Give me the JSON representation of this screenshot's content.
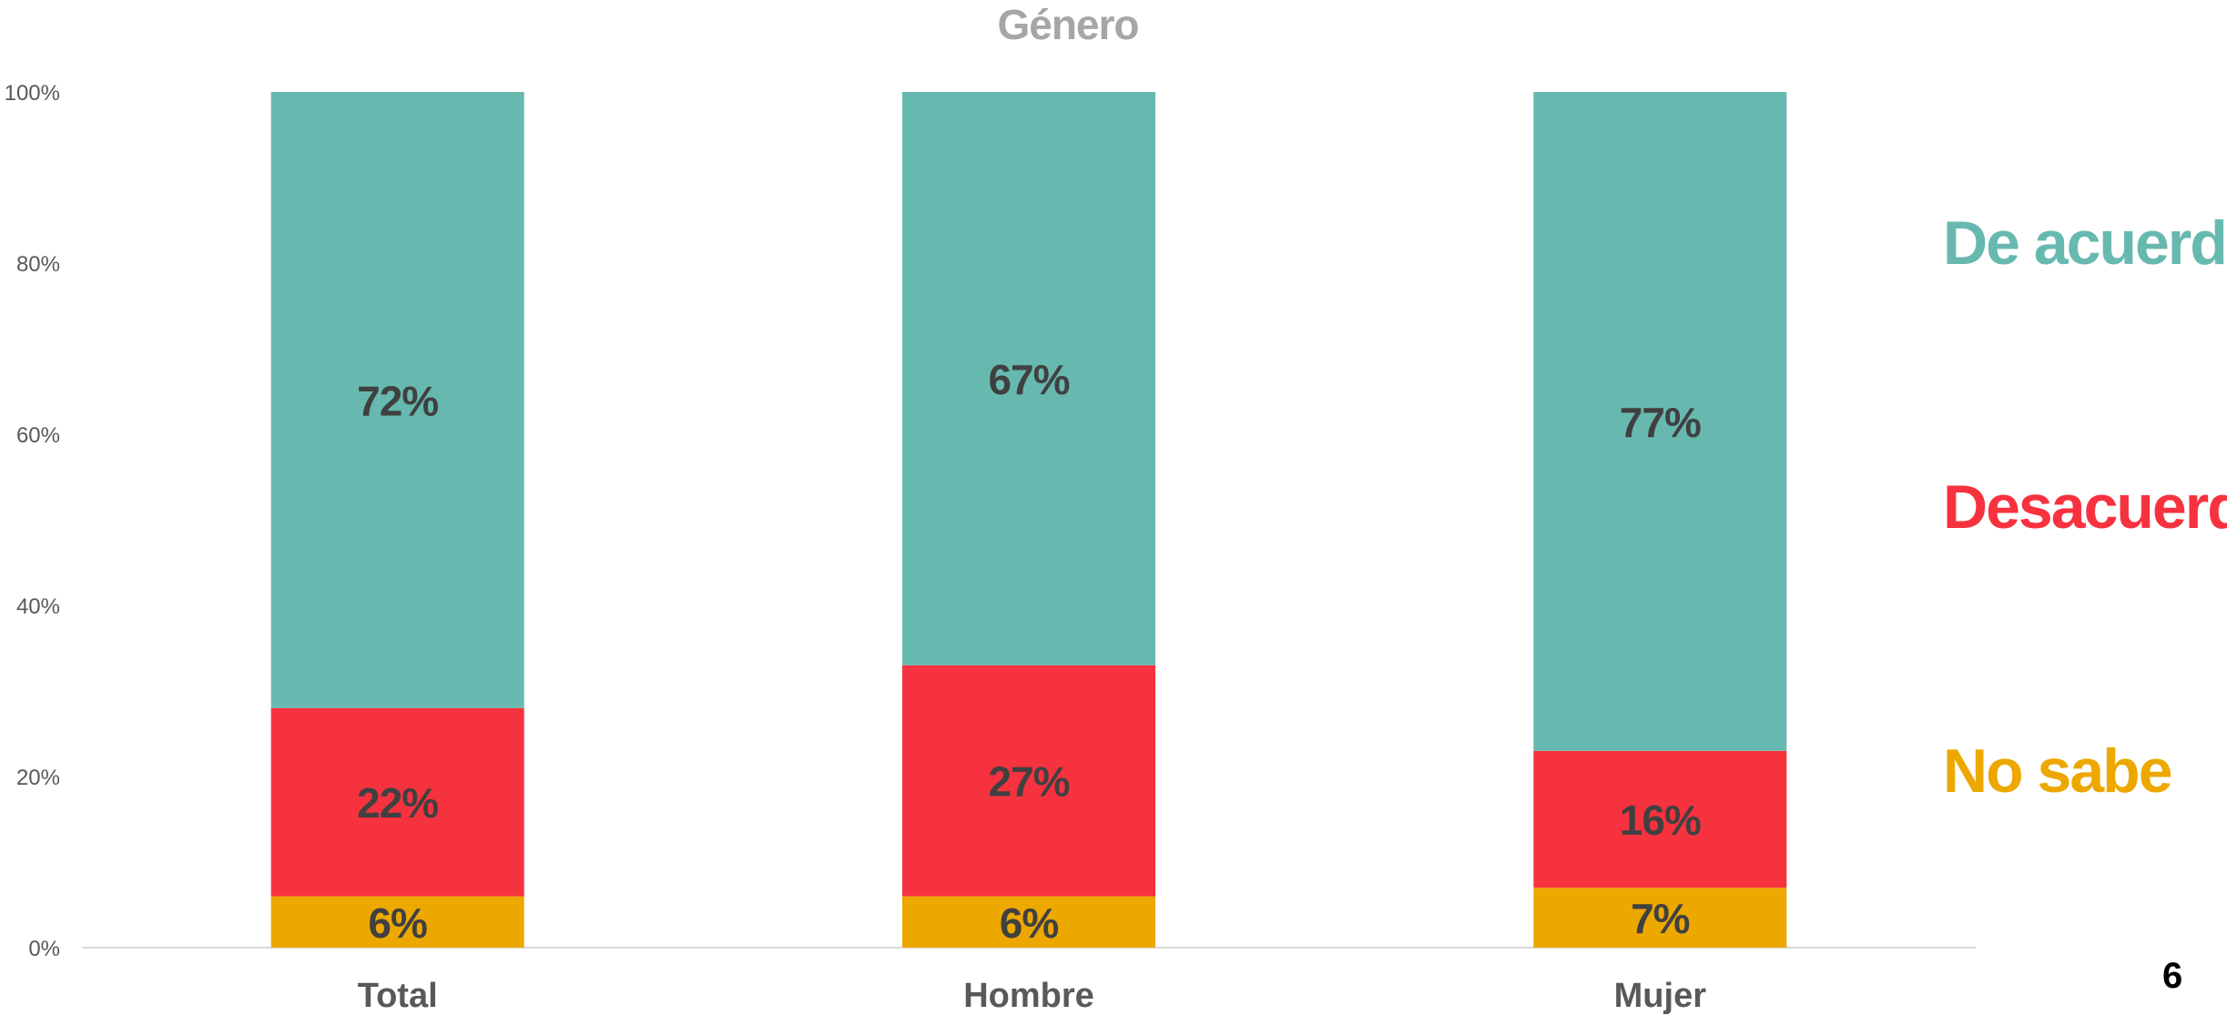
{
  "chart_data": {
    "type": "bar",
    "stacked": true,
    "title": "Género",
    "categories": [
      "Total",
      "Hombre",
      "Mujer"
    ],
    "series": [
      {
        "name": "No sabe",
        "color": "#EDA800",
        "values": [
          6,
          6,
          7
        ]
      },
      {
        "name": "Desacuerdo",
        "color": "#F7323F",
        "values": [
          22,
          27,
          16
        ]
      },
      {
        "name": "De acuerdo",
        "color": "#67B9AF",
        "values": [
          72,
          67,
          77
        ]
      }
    ],
    "yticks": [
      "0%",
      "20%",
      "40%",
      "60%",
      "80%",
      "100%"
    ],
    "ylim": [
      0,
      100
    ],
    "data_label_color": "#404040",
    "legend_placement": "right"
  },
  "legend": [
    {
      "label": "De acuerdo",
      "color": "#67B9AF"
    },
    {
      "label": "Desacuerdo",
      "color": "#F7323F"
    },
    {
      "label": "No sabe",
      "color": "#EDA800"
    }
  ],
  "page_number": "6"
}
